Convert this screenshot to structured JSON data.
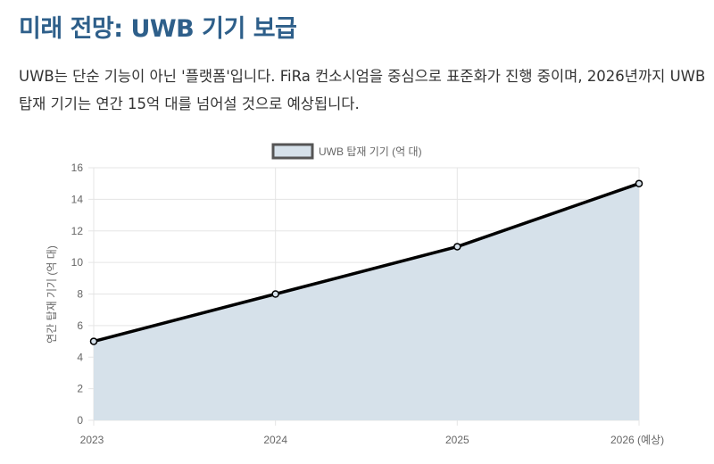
{
  "header": {
    "title": "미래 전망: UWB 기기 보급",
    "description": "UWB는 단순 기능이 아닌 '플랫폼'입니다. FiRa 컨소시엄을 중심으로 표준화가 진행 중이며, 2026년까지 UWB 탑재 기기는 연간 15억 대를 넘어설 것으로 예상됩니다."
  },
  "colors": {
    "title": "#2e5f8a",
    "line": "#000000",
    "fill": "#d6e1ea",
    "legend_border": "#555555"
  },
  "chart_data": {
    "type": "line",
    "title": "",
    "categories": [
      "2023",
      "2024",
      "2025",
      "2026 (예상)"
    ],
    "series": [
      {
        "name": "UWB 탑재 기기 (억 대)",
        "values": [
          5,
          8,
          11,
          15
        ],
        "fill": true
      }
    ],
    "xlabel": "",
    "ylabel": "연간 탑재 기기 (억 대)",
    "ylim": [
      0,
      16
    ],
    "yticks": [
      0,
      2,
      4,
      6,
      8,
      10,
      12,
      14,
      16
    ],
    "grid": true,
    "legend_position": "top"
  }
}
